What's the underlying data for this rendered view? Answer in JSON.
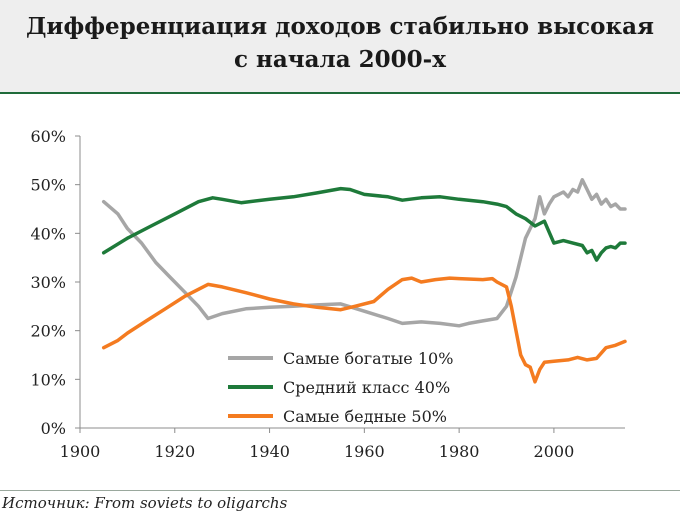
{
  "header": {
    "title_line1": "Дифференциация доходов стабильно высокая",
    "title_line2": "с начала 2000-х"
  },
  "source": "Источник: From soviets to oligarchs",
  "chart_data": {
    "type": "line",
    "title": "Дифференциация доходов стабильно высокая с начала 2000-х",
    "xlim": [
      1900,
      2015
    ],
    "ylim": [
      0,
      60
    ],
    "x_ticks": [
      1900,
      1920,
      1940,
      1960,
      1980,
      2000
    ],
    "y_ticks": [
      0,
      10,
      20,
      30,
      40,
      50,
      60
    ],
    "y_tick_labels": [
      "0%",
      "10%",
      "20%",
      "30%",
      "40%",
      "50%",
      "60%"
    ],
    "grid": false,
    "legend_position": "bottom-center",
    "series": [
      {
        "name": "Самые богатые 10%",
        "color": "#a6a6a6",
        "points": [
          [
            1905,
            46.5
          ],
          [
            1908,
            44
          ],
          [
            1910,
            41
          ],
          [
            1913,
            38
          ],
          [
            1916,
            34
          ],
          [
            1919,
            31
          ],
          [
            1922,
            28
          ],
          [
            1925,
            25
          ],
          [
            1927,
            22.5
          ],
          [
            1930,
            23.5
          ],
          [
            1935,
            24.5
          ],
          [
            1940,
            24.8
          ],
          [
            1945,
            25
          ],
          [
            1950,
            25.3
          ],
          [
            1955,
            25.5
          ],
          [
            1960,
            24
          ],
          [
            1965,
            22.5
          ],
          [
            1968,
            21.5
          ],
          [
            1972,
            21.8
          ],
          [
            1976,
            21.5
          ],
          [
            1980,
            21
          ],
          [
            1982,
            21.5
          ],
          [
            1985,
            22
          ],
          [
            1988,
            22.5
          ],
          [
            1990,
            25
          ],
          [
            1992,
            31
          ],
          [
            1994,
            39
          ],
          [
            1995,
            41
          ],
          [
            1996,
            43
          ],
          [
            1997,
            47.5
          ],
          [
            1998,
            44
          ],
          [
            1999,
            46
          ],
          [
            2000,
            47.5
          ],
          [
            2001,
            48
          ],
          [
            2002,
            48.5
          ],
          [
            2003,
            47.5
          ],
          [
            2004,
            49
          ],
          [
            2005,
            48.5
          ],
          [
            2006,
            51
          ],
          [
            2007,
            49
          ],
          [
            2008,
            47
          ],
          [
            2009,
            48
          ],
          [
            2010,
            46
          ],
          [
            2011,
            47
          ],
          [
            2012,
            45.5
          ],
          [
            2013,
            46
          ],
          [
            2014,
            45
          ],
          [
            2015,
            45
          ]
        ]
      },
      {
        "name": "Средний класс 40%",
        "color": "#1e7a3a",
        "points": [
          [
            1905,
            36
          ],
          [
            1910,
            39
          ],
          [
            1915,
            41.5
          ],
          [
            1920,
            44
          ],
          [
            1925,
            46.5
          ],
          [
            1928,
            47.3
          ],
          [
            1930,
            47
          ],
          [
            1934,
            46.3
          ],
          [
            1940,
            47
          ],
          [
            1945,
            47.5
          ],
          [
            1950,
            48.3
          ],
          [
            1955,
            49.2
          ],
          [
            1957,
            49
          ],
          [
            1960,
            48
          ],
          [
            1965,
            47.5
          ],
          [
            1968,
            46.8
          ],
          [
            1972,
            47.3
          ],
          [
            1976,
            47.5
          ],
          [
            1980,
            47
          ],
          [
            1985,
            46.5
          ],
          [
            1988,
            46
          ],
          [
            1990,
            45.5
          ],
          [
            1992,
            44
          ],
          [
            1994,
            43
          ],
          [
            1996,
            41.5
          ],
          [
            1998,
            42.5
          ],
          [
            2000,
            38
          ],
          [
            2002,
            38.5
          ],
          [
            2004,
            38
          ],
          [
            2006,
            37.5
          ],
          [
            2007,
            36
          ],
          [
            2008,
            36.5
          ],
          [
            2009,
            34.5
          ],
          [
            2010,
            36
          ],
          [
            2011,
            37
          ],
          [
            2012,
            37.3
          ],
          [
            2013,
            37
          ],
          [
            2014,
            38
          ],
          [
            2015,
            38
          ]
        ]
      },
      {
        "name": "Самые бедные 50%",
        "color": "#f47b20",
        "points": [
          [
            1905,
            16.5
          ],
          [
            1908,
            18
          ],
          [
            1910,
            19.5
          ],
          [
            1914,
            22
          ],
          [
            1918,
            24.5
          ],
          [
            1922,
            27
          ],
          [
            1925,
            28.5
          ],
          [
            1927,
            29.5
          ],
          [
            1930,
            29
          ],
          [
            1935,
            27.8
          ],
          [
            1940,
            26.5
          ],
          [
            1945,
            25.5
          ],
          [
            1950,
            24.8
          ],
          [
            1955,
            24.3
          ],
          [
            1958,
            25
          ],
          [
            1962,
            26
          ],
          [
            1965,
            28.5
          ],
          [
            1968,
            30.5
          ],
          [
            1970,
            30.8
          ],
          [
            1972,
            30
          ],
          [
            1975,
            30.5
          ],
          [
            1978,
            30.8
          ],
          [
            1980,
            30.7
          ],
          [
            1985,
            30.5
          ],
          [
            1987,
            30.7
          ],
          [
            1988,
            30
          ],
          [
            1990,
            29
          ],
          [
            1991,
            25
          ],
          [
            1992,
            20
          ],
          [
            1993,
            15
          ],
          [
            1994,
            13
          ],
          [
            1995,
            12.5
          ],
          [
            1996,
            9.5
          ],
          [
            1997,
            12
          ],
          [
            1998,
            13.5
          ],
          [
            2000,
            13.7
          ],
          [
            2003,
            14
          ],
          [
            2005,
            14.5
          ],
          [
            2007,
            14
          ],
          [
            2009,
            14.3
          ],
          [
            2011,
            16.5
          ],
          [
            2013,
            17
          ],
          [
            2015,
            17.8
          ]
        ]
      }
    ]
  }
}
